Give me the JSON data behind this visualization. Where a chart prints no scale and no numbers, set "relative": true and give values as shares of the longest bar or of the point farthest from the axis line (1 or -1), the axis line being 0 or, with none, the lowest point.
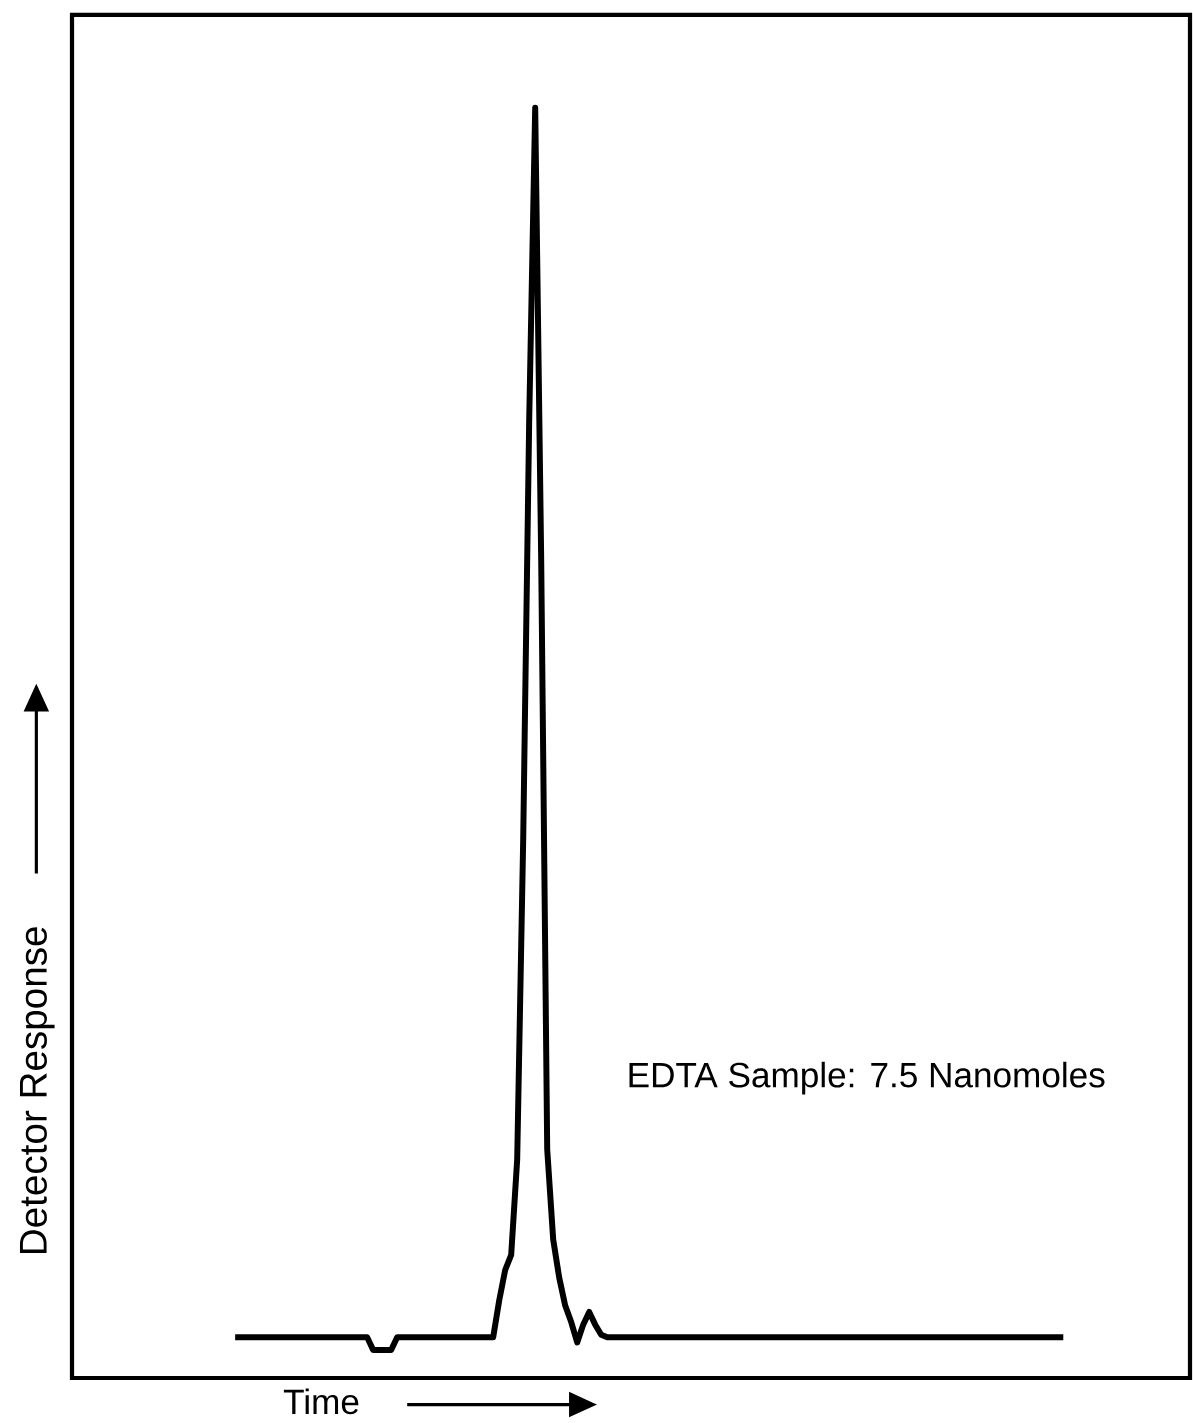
{
  "chart_data": {
    "type": "line",
    "relative": true,
    "xlabel": "Time",
    "ylabel": "Detector Response",
    "annotations": [
      "EDTA Sample: 7.5 Nanomoles"
    ],
    "color": "#000000",
    "marker": "none",
    "line_style": "solid",
    "tick_labels": false,
    "categories": [
      null,
      null,
      null,
      null,
      null,
      null,
      null,
      null,
      null,
      null,
      null,
      null,
      null,
      null,
      null,
      null,
      null,
      null,
      null,
      null,
      null,
      null,
      null,
      null,
      null,
      null,
      null,
      null,
      null,
      null,
      null,
      null,
      null,
      null,
      null,
      null,
      null,
      null,
      null,
      null,
      null,
      null,
      null,
      null,
      null,
      null,
      null,
      null,
      null,
      null,
      null,
      null,
      null,
      null,
      null,
      null,
      null,
      null,
      null,
      null,
      null,
      null,
      null,
      null,
      null,
      null,
      null,
      null,
      null,
      null,
      null,
      null,
      null,
      null,
      null,
      null,
      null,
      null,
      null,
      null,
      null,
      null,
      null,
      null,
      null,
      null,
      null,
      null,
      null,
      null,
      null,
      null,
      null,
      null,
      null,
      null,
      null,
      null,
      null,
      null,
      null,
      null,
      null,
      null,
      null,
      null,
      null,
      null,
      null,
      null,
      null,
      null,
      null,
      null,
      null,
      null,
      null,
      null,
      null,
      null,
      null,
      null,
      null,
      null,
      null,
      null,
      null,
      null,
      null,
      null,
      null,
      null,
      null,
      null,
      null,
      null,
      null,
      null,
      null
    ],
    "values": [
      0.032,
      0.032,
      0.032,
      0.032,
      0.032,
      0.032,
      0.032,
      0.032,
      0.032,
      0.032,
      0.032,
      0.032,
      0.032,
      0.032,
      0.032,
      0.032,
      0.032,
      0.032,
      0.032,
      0.032,
      0.032,
      0.032,
      0.032,
      0.022,
      0.022,
      0.022,
      0.022,
      0.032,
      0.032,
      0.032,
      0.032,
      0.032,
      0.032,
      0.032,
      0.032,
      0.032,
      0.032,
      0.032,
      0.032,
      0.032,
      0.032,
      0.032,
      0.032,
      0.032,
      0.061,
      0.085,
      0.097,
      0.172,
      0.424,
      0.754,
      1.0,
      0.644,
      0.18,
      0.109,
      0.079,
      0.057,
      0.044,
      0.028,
      0.042,
      0.052,
      0.042,
      0.034,
      0.032,
      0.032,
      0.032,
      0.032,
      0.032,
      0.032,
      0.032,
      0.032,
      0.032,
      0.032,
      0.032,
      0.032,
      0.032,
      0.032,
      0.032,
      0.032,
      0.032,
      0.032,
      0.032,
      0.032,
      0.032,
      0.032,
      0.032,
      0.032,
      0.032,
      0.032,
      0.032,
      0.032,
      0.032,
      0.032,
      0.032,
      0.032,
      0.032,
      0.032,
      0.032,
      0.032,
      0.032,
      0.032,
      0.032,
      0.032,
      0.032,
      0.032,
      0.032,
      0.032,
      0.032,
      0.032,
      0.032,
      0.032,
      0.032,
      0.032,
      0.032,
      0.032,
      0.032,
      0.032,
      0.032,
      0.032,
      0.032,
      0.032,
      0.032,
      0.032,
      0.032,
      0.032,
      0.032,
      0.032,
      0.032,
      0.032,
      0.032,
      0.032,
      0.032,
      0.032,
      0.032,
      0.032,
      0.032,
      0.032,
      0.032,
      0.032,
      0.032
    ]
  }
}
